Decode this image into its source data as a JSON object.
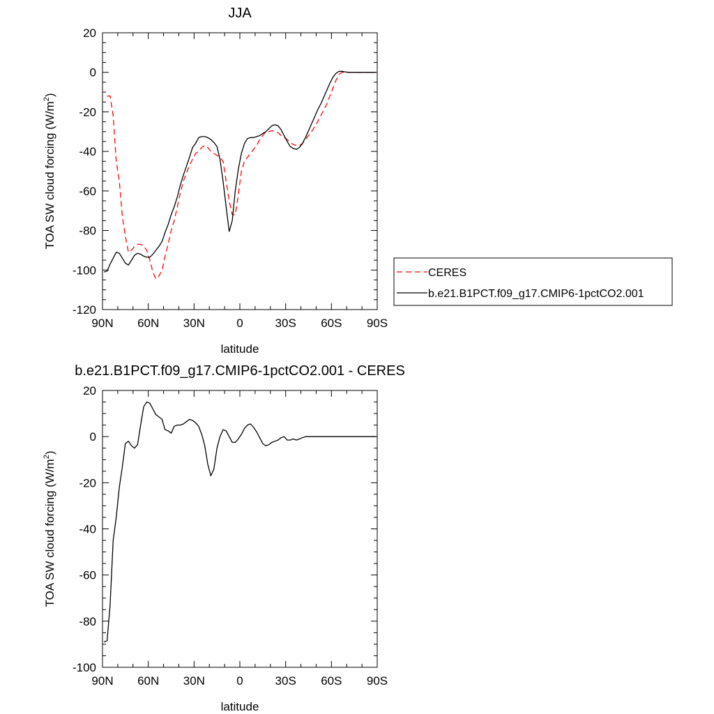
{
  "chart_data": [
    {
      "type": "line",
      "title": "JJA",
      "xlabel": "latitude",
      "ylabel_main": "TOA SW cloud forcing (W/m",
      "ylabel_sup": "2",
      "ylabel_close": ")",
      "xlim": [
        -90,
        90
      ],
      "ylim": [
        -120,
        20
      ],
      "x_ticks": [
        -90,
        -60,
        -30,
        0,
        30,
        60,
        90
      ],
      "x_tick_labels": [
        "90N",
        "60N",
        "30N",
        "0",
        "30S",
        "60S",
        "90S"
      ],
      "y_ticks": [
        20,
        0,
        -20,
        -40,
        -60,
        -80,
        -100,
        -120
      ],
      "y_tick_labels": [
        "20",
        "0",
        "-20",
        "-40",
        "-60",
        "-80",
        "-100",
        "-120"
      ],
      "legend_position": "right",
      "series": [
        {
          "name": "CERES",
          "color": "#ff0000",
          "style": "dashed",
          "x": [
            -87,
            -85,
            -83,
            -81,
            -79,
            -77,
            -75,
            -73,
            -71,
            -69,
            -67,
            -65,
            -63,
            -61,
            -59,
            -57,
            -55,
            -53,
            -51,
            -49,
            -47,
            -45,
            -43,
            -41,
            -39,
            -37,
            -35,
            -33,
            -31,
            -29,
            -27,
            -25,
            -23,
            -21,
            -19,
            -17,
            -15,
            -13,
            -11,
            -9,
            -7,
            -5,
            -3,
            -1,
            1,
            3,
            5,
            7,
            9,
            11,
            13,
            15,
            17,
            19,
            21,
            23,
            25,
            27,
            29,
            31,
            33,
            35,
            37,
            39,
            41,
            43,
            45,
            47,
            49,
            51,
            53,
            55,
            57,
            59,
            61,
            63,
            65,
            67,
            69,
            71,
            73,
            75,
            77,
            79,
            81,
            83,
            85,
            87,
            89
          ],
          "y": [
            -12,
            -12,
            -22,
            -45,
            -55,
            -73,
            -83,
            -91,
            -90,
            -88,
            -87,
            -87,
            -88,
            -90,
            -95,
            -101,
            -104.5,
            -103,
            -100,
            -93,
            -87,
            -80,
            -75,
            -68,
            -61,
            -55,
            -51,
            -47,
            -44,
            -41,
            -40,
            -38,
            -37,
            -38,
            -40,
            -41,
            -42,
            -43,
            -45,
            -55,
            -65,
            -72,
            -72,
            -62,
            -50,
            -45,
            -43,
            -41,
            -39,
            -37,
            -34,
            -32,
            -30,
            -30,
            -29.5,
            -30,
            -30.5,
            -32,
            -33,
            -34,
            -35.5,
            -36.5,
            -37,
            -37,
            -36,
            -34,
            -32,
            -30,
            -27.5,
            -25,
            -22,
            -19,
            -16,
            -12,
            -8,
            -4,
            -1,
            0,
            0,
            0,
            0,
            0,
            0,
            0,
            0,
            0,
            0,
            0,
            0
          ]
        },
        {
          "name": "b.e21.B1PCT.f09_g17.CMIP6-1pctCO2.001",
          "color": "#000000",
          "style": "solid",
          "x": [
            -89,
            -87,
            -85,
            -83,
            -81,
            -79,
            -77,
            -75,
            -73,
            -71,
            -69,
            -67,
            -65,
            -63,
            -61,
            -59,
            -57,
            -55,
            -53,
            -51,
            -49,
            -47,
            -45,
            -43,
            -41,
            -39,
            -37,
            -35,
            -33,
            -31,
            -29,
            -27,
            -25,
            -23,
            -21,
            -19,
            -17,
            -15,
            -13,
            -11,
            -9,
            -7,
            -5,
            -3,
            -1,
            1,
            3,
            5,
            7,
            9,
            11,
            13,
            15,
            17,
            19,
            21,
            23,
            25,
            27,
            29,
            31,
            33,
            35,
            37,
            39,
            41,
            43,
            45,
            47,
            49,
            51,
            53,
            55,
            57,
            59,
            61,
            63,
            65,
            67,
            69,
            71,
            73,
            75,
            77,
            79,
            81,
            83,
            85,
            87,
            89
          ],
          "y": [
            -101,
            -100.5,
            -97,
            -94,
            -91,
            -91.5,
            -94,
            -96.5,
            -97.5,
            -95,
            -92.5,
            -91.5,
            -92,
            -93,
            -93.5,
            -93.5,
            -92,
            -90,
            -88,
            -85.5,
            -81,
            -77,
            -72,
            -68,
            -63,
            -57,
            -52,
            -47.5,
            -43,
            -38,
            -36,
            -33,
            -32.5,
            -32.5,
            -33,
            -34,
            -35.5,
            -37.5,
            -44,
            -55,
            -68,
            -80.5,
            -75,
            -60,
            -49,
            -41,
            -36,
            -33.5,
            -33,
            -33,
            -32.5,
            -32,
            -31,
            -30,
            -28.5,
            -27,
            -26.5,
            -27,
            -29,
            -32,
            -35,
            -37.5,
            -38.5,
            -39,
            -38,
            -36,
            -33,
            -29.5,
            -26,
            -22.5,
            -19,
            -16,
            -12.5,
            -9,
            -5.5,
            -2.5,
            -0.5,
            0.5,
            0.5,
            0.2,
            0,
            0,
            0,
            0,
            0,
            0,
            0,
            0,
            0,
            0
          ]
        }
      ]
    },
    {
      "type": "line",
      "title": "b.e21.B1PCT.f09_g17.CMIP6-1pctCO2.001 - CERES",
      "xlabel": "latitude",
      "ylabel_main": "TOA SW cloud forcing (W/m",
      "ylabel_sup": "2",
      "ylabel_close": ")",
      "xlim": [
        -90,
        90
      ],
      "ylim": [
        -100,
        20
      ],
      "x_ticks": [
        -90,
        -60,
        -30,
        0,
        30,
        60,
        90
      ],
      "x_tick_labels": [
        "90N",
        "60N",
        "30N",
        "0",
        "30S",
        "60S",
        "90S"
      ],
      "y_ticks": [
        20,
        0,
        -20,
        -40,
        -60,
        -80,
        -100
      ],
      "y_tick_labels": [
        "20",
        "0",
        "-20",
        "-40",
        "-60",
        "-80",
        "-100"
      ],
      "series": [
        {
          "color": "#000000",
          "style": "solid",
          "x": [
            -89,
            -87,
            -85,
            -83,
            -81,
            -79,
            -77,
            -75,
            -73,
            -71,
            -69,
            -67,
            -65,
            -63,
            -61,
            -59,
            -57,
            -55,
            -53,
            -51,
            -49,
            -47,
            -45,
            -43,
            -41,
            -39,
            -37,
            -35,
            -33,
            -31,
            -29,
            -27,
            -25,
            -23,
            -21,
            -19,
            -17,
            -15,
            -13,
            -11,
            -9,
            -7,
            -5,
            -3,
            -1,
            1,
            3,
            5,
            7,
            9,
            11,
            13,
            15,
            17,
            19,
            21,
            23,
            25,
            27,
            29,
            31,
            33,
            35,
            37,
            39,
            41,
            43,
            45,
            47,
            49,
            51,
            53,
            55,
            57,
            59,
            61,
            63,
            65,
            67,
            69,
            71,
            73,
            75,
            77,
            79,
            81,
            83,
            85,
            87,
            89
          ],
          "y": [
            -89,
            -88.5,
            -73,
            -45,
            -35,
            -22,
            -13,
            -3,
            -2,
            -4,
            -5,
            -3.5,
            5,
            13,
            15,
            14.5,
            12,
            9.5,
            8.5,
            7.5,
            3,
            2.5,
            1.5,
            4.5,
            5,
            5,
            5.5,
            6.5,
            7.5,
            7,
            6,
            4.5,
            1,
            -4,
            -12,
            -17,
            -14,
            -5,
            0,
            3,
            2.5,
            0,
            -2.5,
            -2.5,
            -1,
            1,
            3.5,
            5,
            5.5,
            4,
            2,
            -0.5,
            -3,
            -4,
            -3.5,
            -2.5,
            -2,
            -1.5,
            -0.5,
            0,
            -1.5,
            -1.5,
            -1,
            -1.5,
            -1,
            -0.5,
            0,
            0,
            0,
            0,
            0,
            0,
            0,
            0,
            0,
            0,
            0,
            0,
            0,
            0,
            0,
            0,
            0,
            0,
            0,
            0,
            0,
            0,
            0,
            0
          ]
        }
      ]
    }
  ]
}
